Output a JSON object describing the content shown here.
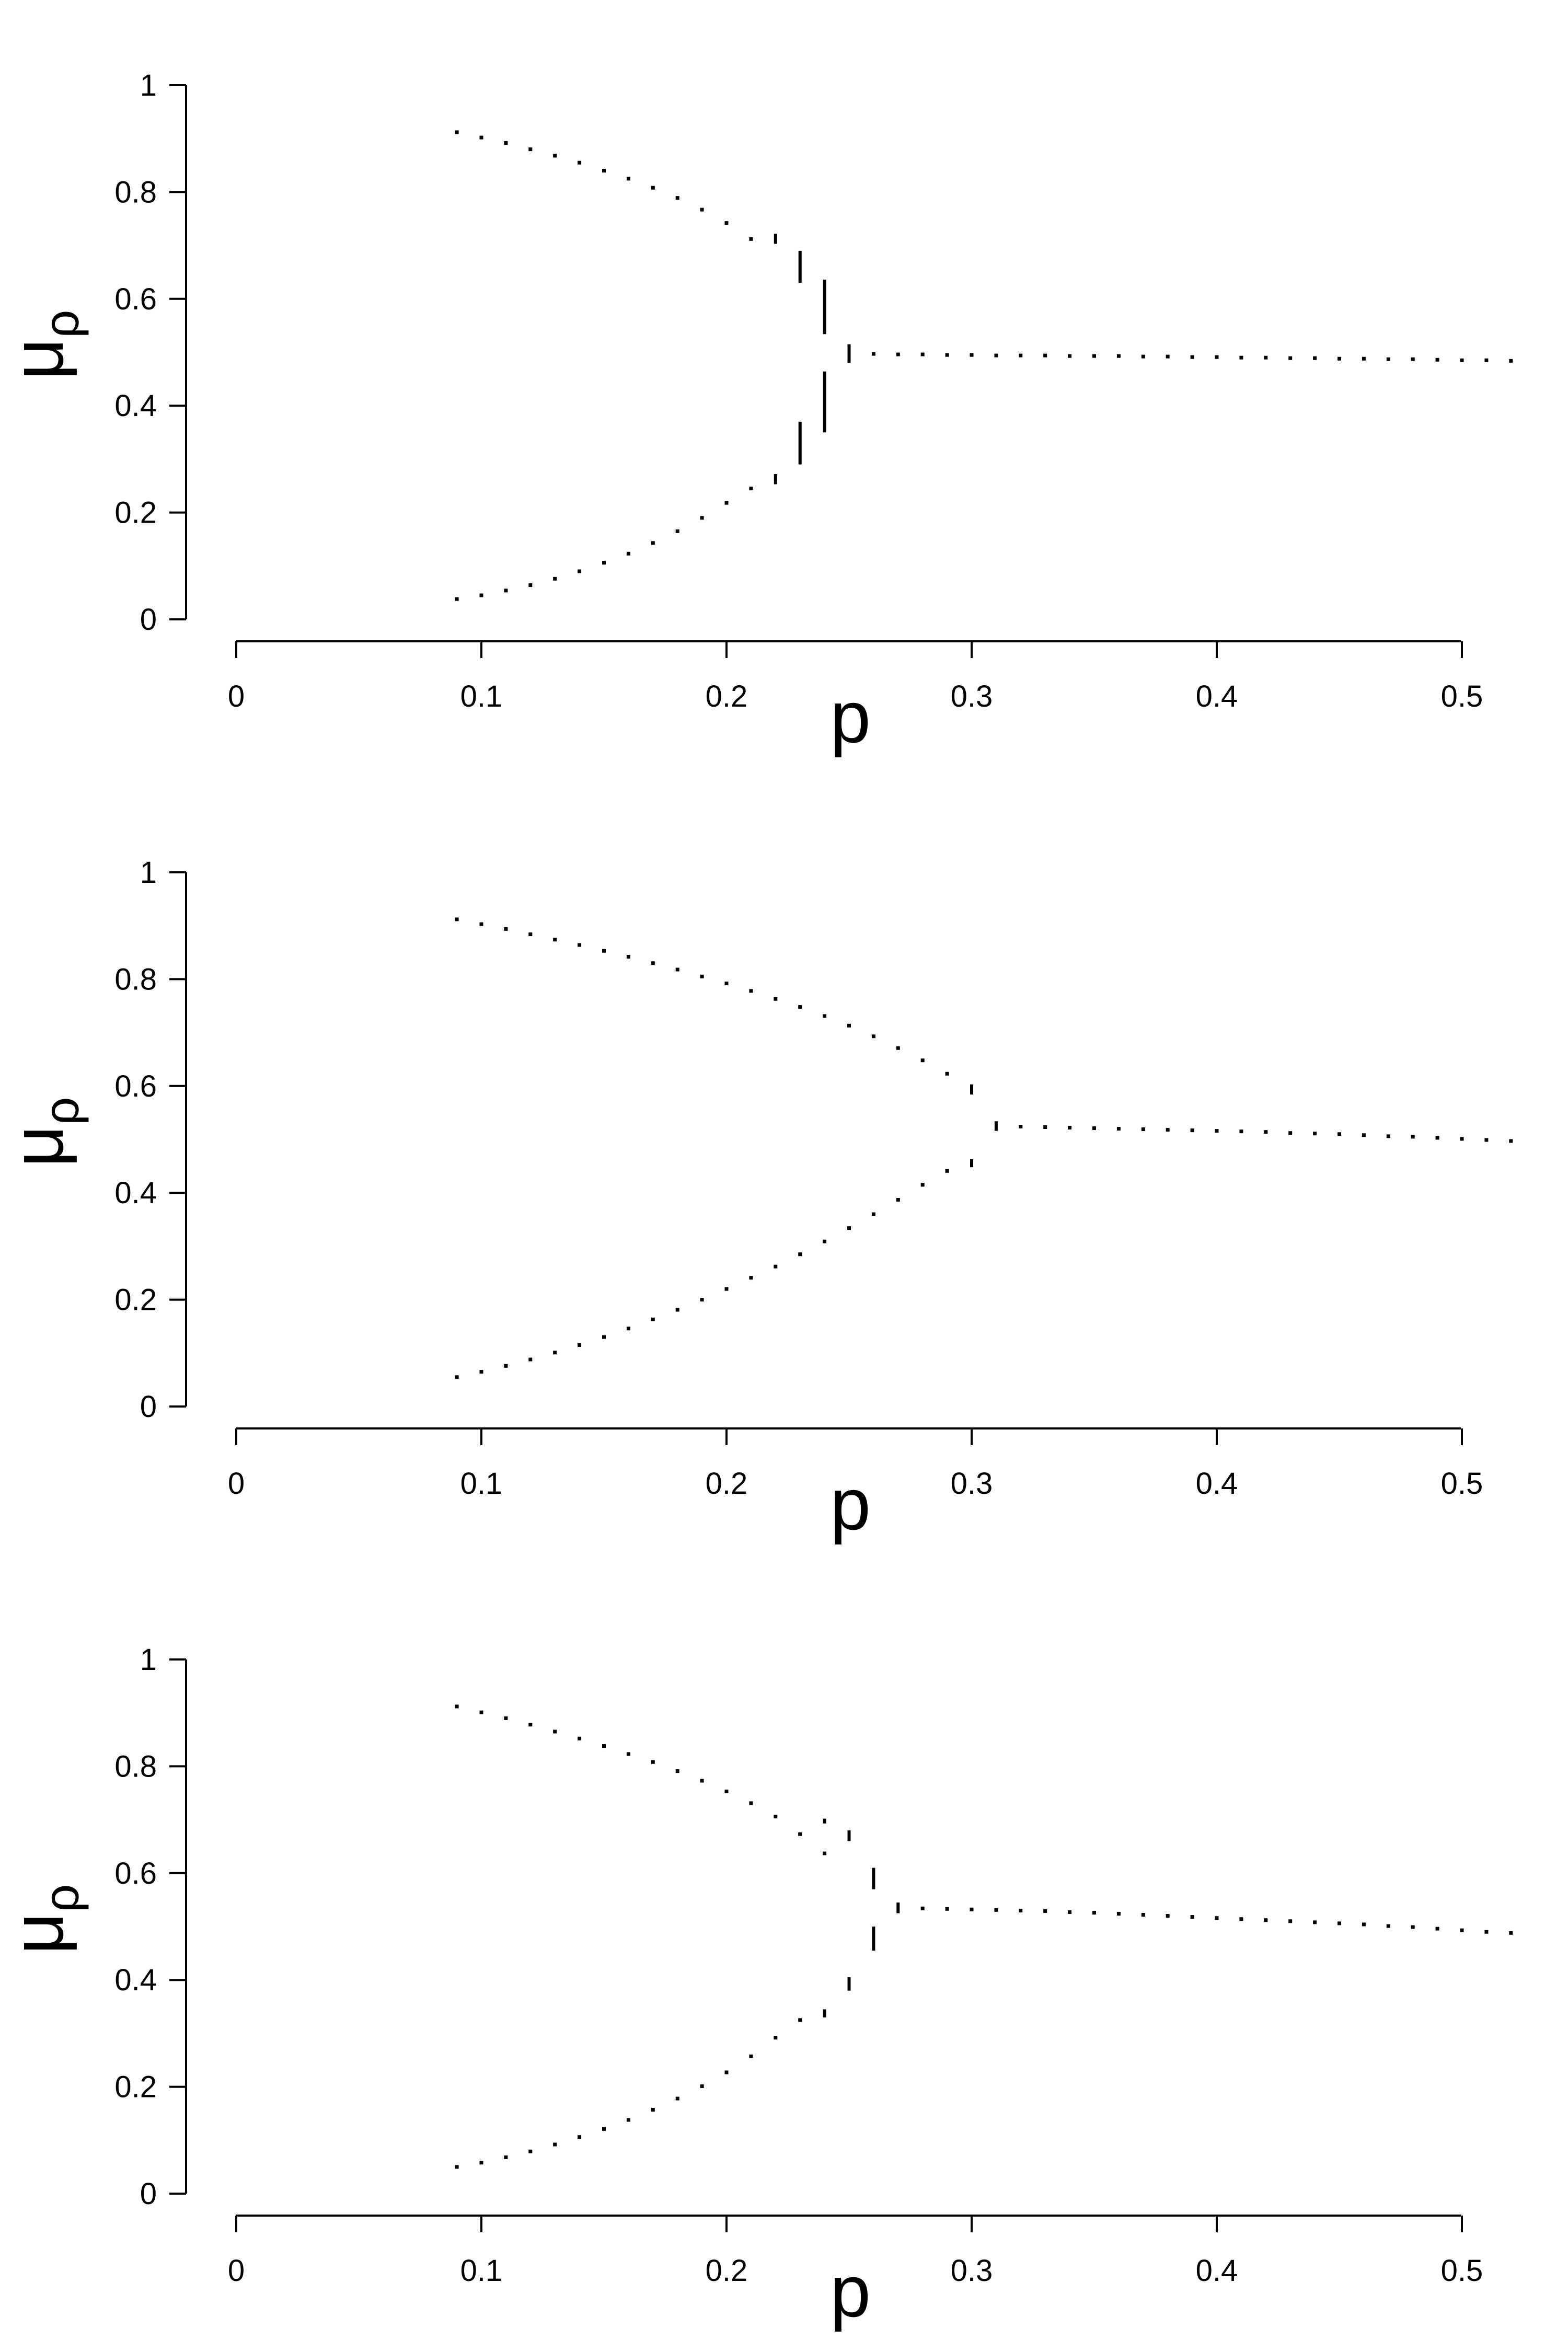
{
  "chart_data": [
    {
      "type": "scatter",
      "title": "",
      "xlabel": "p",
      "ylabel": "μ",
      "ylabel_sub": "ρ",
      "xlim": [
        0,
        0.52
      ],
      "ylim": [
        0,
        1
      ],
      "xticks": [
        "0",
        "0.1",
        "0.2",
        "0.3",
        "0.4",
        "0.5"
      ],
      "yticks": [
        "0",
        "0.2",
        "0.4",
        "0.6",
        "0.8",
        "1"
      ],
      "grid": false,
      "points": [
        [
          0.09,
          0.912
        ],
        [
          0.1,
          0.902
        ],
        [
          0.11,
          0.892
        ],
        [
          0.12,
          0.88
        ],
        [
          0.13,
          0.868
        ],
        [
          0.14,
          0.855
        ],
        [
          0.15,
          0.84
        ],
        [
          0.16,
          0.825
        ],
        [
          0.17,
          0.808
        ],
        [
          0.18,
          0.789
        ],
        [
          0.19,
          0.767
        ],
        [
          0.2,
          0.742
        ],
        [
          0.21,
          0.712
        ],
        [
          0.09,
          0.038
        ],
        [
          0.1,
          0.045
        ],
        [
          0.11,
          0.054
        ],
        [
          0.12,
          0.064
        ],
        [
          0.13,
          0.076
        ],
        [
          0.14,
          0.09
        ],
        [
          0.15,
          0.106
        ],
        [
          0.16,
          0.123
        ],
        [
          0.17,
          0.143
        ],
        [
          0.18,
          0.165
        ],
        [
          0.19,
          0.19
        ],
        [
          0.2,
          0.218
        ],
        [
          0.21,
          0.245
        ],
        [
          0.26,
          0.497
        ],
        [
          0.27,
          0.496
        ],
        [
          0.28,
          0.496
        ],
        [
          0.29,
          0.495
        ],
        [
          0.3,
          0.495
        ],
        [
          0.31,
          0.494
        ],
        [
          0.32,
          0.494
        ],
        [
          0.33,
          0.494
        ],
        [
          0.34,
          0.493
        ],
        [
          0.35,
          0.493
        ],
        [
          0.36,
          0.493
        ],
        [
          0.37,
          0.492
        ],
        [
          0.38,
          0.492
        ],
        [
          0.39,
          0.491
        ],
        [
          0.4,
          0.491
        ],
        [
          0.41,
          0.49
        ],
        [
          0.42,
          0.49
        ],
        [
          0.43,
          0.489
        ],
        [
          0.44,
          0.489
        ],
        [
          0.45,
          0.488
        ],
        [
          0.46,
          0.488
        ],
        [
          0.47,
          0.487
        ],
        [
          0.48,
          0.487
        ],
        [
          0.49,
          0.486
        ],
        [
          0.5,
          0.485
        ],
        [
          0.51,
          0.485
        ],
        [
          0.52,
          0.484
        ]
      ],
      "segments": [
        [
          0.22,
          0.703,
          0.722
        ],
        [
          0.23,
          0.63,
          0.69
        ],
        [
          0.24,
          0.534,
          0.636
        ],
        [
          0.22,
          0.253,
          0.272
        ],
        [
          0.23,
          0.29,
          0.37
        ],
        [
          0.24,
          0.35,
          0.464
        ],
        [
          0.25,
          0.48,
          0.515
        ]
      ]
    },
    {
      "type": "scatter",
      "title": "",
      "xlabel": "p",
      "ylabel": "μ",
      "ylabel_sub": "ρ",
      "xlim": [
        0,
        0.52
      ],
      "ylim": [
        0,
        1
      ],
      "xticks": [
        "0",
        "0.1",
        "0.2",
        "0.3",
        "0.4",
        "0.5"
      ],
      "yticks": [
        "0",
        "0.2",
        "0.4",
        "0.6",
        "0.8",
        "1"
      ],
      "grid": false,
      "points": [
        [
          0.09,
          0.912
        ],
        [
          0.1,
          0.903
        ],
        [
          0.11,
          0.894
        ],
        [
          0.12,
          0.884
        ],
        [
          0.13,
          0.874
        ],
        [
          0.14,
          0.864
        ],
        [
          0.15,
          0.853
        ],
        [
          0.16,
          0.842
        ],
        [
          0.17,
          0.83
        ],
        [
          0.18,
          0.818
        ],
        [
          0.19,
          0.805
        ],
        [
          0.2,
          0.792
        ],
        [
          0.21,
          0.778
        ],
        [
          0.22,
          0.763
        ],
        [
          0.23,
          0.748
        ],
        [
          0.24,
          0.731
        ],
        [
          0.25,
          0.713
        ],
        [
          0.26,
          0.693
        ],
        [
          0.27,
          0.671
        ],
        [
          0.28,
          0.648
        ],
        [
          0.29,
          0.623
        ],
        [
          0.09,
          0.055
        ],
        [
          0.1,
          0.065
        ],
        [
          0.11,
          0.076
        ],
        [
          0.12,
          0.088
        ],
        [
          0.13,
          0.101
        ],
        [
          0.14,
          0.115
        ],
        [
          0.15,
          0.13
        ],
        [
          0.16,
          0.146
        ],
        [
          0.17,
          0.163
        ],
        [
          0.18,
          0.181
        ],
        [
          0.19,
          0.2
        ],
        [
          0.2,
          0.22
        ],
        [
          0.21,
          0.241
        ],
        [
          0.22,
          0.262
        ],
        [
          0.23,
          0.285
        ],
        [
          0.24,
          0.309
        ],
        [
          0.25,
          0.334
        ],
        [
          0.26,
          0.36
        ],
        [
          0.27,
          0.387
        ],
        [
          0.28,
          0.415
        ],
        [
          0.29,
          0.441
        ],
        [
          0.32,
          0.524
        ],
        [
          0.33,
          0.523
        ],
        [
          0.34,
          0.522
        ],
        [
          0.35,
          0.521
        ],
        [
          0.36,
          0.52
        ],
        [
          0.37,
          0.519
        ],
        [
          0.38,
          0.518
        ],
        [
          0.39,
          0.517
        ],
        [
          0.4,
          0.516
        ],
        [
          0.41,
          0.515
        ],
        [
          0.42,
          0.514
        ],
        [
          0.43,
          0.512
        ],
        [
          0.44,
          0.511
        ],
        [
          0.45,
          0.51
        ],
        [
          0.46,
          0.508
        ],
        [
          0.47,
          0.506
        ],
        [
          0.48,
          0.505
        ],
        [
          0.49,
          0.503
        ],
        [
          0.5,
          0.501
        ],
        [
          0.51,
          0.499
        ],
        [
          0.52,
          0.497
        ]
      ],
      "segments": [
        [
          0.3,
          0.584,
          0.603
        ],
        [
          0.3,
          0.448,
          0.463
        ],
        [
          0.31,
          0.516,
          0.534
        ]
      ]
    },
    {
      "type": "scatter",
      "title": "",
      "xlabel": "p",
      "ylabel": "μ",
      "ylabel_sub": "ρ",
      "xlim": [
        0,
        0.52
      ],
      "ylim": [
        0,
        1
      ],
      "xticks": [
        "0",
        "0.1",
        "0.2",
        "0.3",
        "0.4",
        "0.5"
      ],
      "yticks": [
        "0",
        "0.2",
        "0.4",
        "0.6",
        "0.8",
        "1"
      ],
      "grid": false,
      "points": [
        [
          0.09,
          0.912
        ],
        [
          0.1,
          0.901
        ],
        [
          0.11,
          0.89
        ],
        [
          0.12,
          0.878
        ],
        [
          0.13,
          0.865
        ],
        [
          0.14,
          0.852
        ],
        [
          0.15,
          0.838
        ],
        [
          0.16,
          0.823
        ],
        [
          0.17,
          0.808
        ],
        [
          0.18,
          0.791
        ],
        [
          0.19,
          0.773
        ],
        [
          0.2,
          0.753
        ],
        [
          0.21,
          0.731
        ],
        [
          0.22,
          0.706
        ],
        [
          0.23,
          0.673
        ],
        [
          0.24,
          0.637
        ],
        [
          0.09,
          0.05
        ],
        [
          0.1,
          0.058
        ],
        [
          0.11,
          0.068
        ],
        [
          0.12,
          0.079
        ],
        [
          0.13,
          0.092
        ],
        [
          0.14,
          0.106
        ],
        [
          0.15,
          0.121
        ],
        [
          0.16,
          0.138
        ],
        [
          0.17,
          0.157
        ],
        [
          0.18,
          0.178
        ],
        [
          0.19,
          0.201
        ],
        [
          0.2,
          0.227
        ],
        [
          0.21,
          0.257
        ],
        [
          0.22,
          0.292
        ],
        [
          0.23,
          0.325
        ],
        [
          0.28,
          0.534
        ],
        [
          0.29,
          0.533
        ],
        [
          0.3,
          0.532
        ],
        [
          0.31,
          0.531
        ],
        [
          0.32,
          0.53
        ],
        [
          0.33,
          0.529
        ],
        [
          0.34,
          0.527
        ],
        [
          0.35,
          0.526
        ],
        [
          0.36,
          0.524
        ],
        [
          0.37,
          0.522
        ],
        [
          0.38,
          0.52
        ],
        [
          0.39,
          0.518
        ],
        [
          0.4,
          0.516
        ],
        [
          0.41,
          0.514
        ],
        [
          0.42,
          0.512
        ],
        [
          0.43,
          0.51
        ],
        [
          0.44,
          0.508
        ],
        [
          0.45,
          0.506
        ],
        [
          0.46,
          0.504
        ],
        [
          0.47,
          0.501
        ],
        [
          0.48,
          0.499
        ],
        [
          0.49,
          0.496
        ],
        [
          0.5,
          0.493
        ],
        [
          0.51,
          0.49
        ],
        [
          0.52,
          0.488
        ]
      ],
      "segments": [
        [
          0.24,
          0.693,
          0.702
        ],
        [
          0.25,
          0.66,
          0.68
        ],
        [
          0.26,
          0.57,
          0.61
        ],
        [
          0.24,
          0.33,
          0.345
        ],
        [
          0.25,
          0.38,
          0.405
        ],
        [
          0.26,
          0.455,
          0.5
        ],
        [
          0.27,
          0.525,
          0.545
        ]
      ]
    }
  ]
}
